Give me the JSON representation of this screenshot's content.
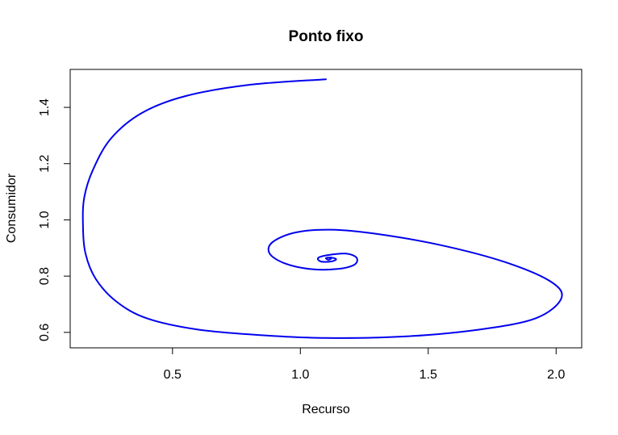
{
  "chart_data": {
    "type": "line",
    "title": "Ponto fixo",
    "xlabel": "Recurso",
    "ylabel": "Consumidor",
    "xlim": [
      0.1,
      2.1
    ],
    "ylim": [
      0.545,
      1.535
    ],
    "xticks": [
      0.5,
      1.0,
      1.5,
      2.0
    ],
    "xtick_labels": [
      "0.5",
      "1.0",
      "1.5",
      "2.0"
    ],
    "yticks": [
      0.6,
      0.8,
      1.0,
      1.2,
      1.4
    ],
    "ytick_labels": [
      "0.6",
      "0.8",
      "1.0",
      "1.2",
      "1.4"
    ],
    "grid": false,
    "legend": "none",
    "series": [
      {
        "color": "#0000ee",
        "x": [
          1.1,
          0.8,
          0.55,
          0.38,
          0.26,
          0.19,
          0.155,
          0.15,
          0.16,
          0.2,
          0.28,
          0.4,
          0.6,
          0.85,
          1.1,
          1.4,
          1.7,
          1.92,
          2.02,
          1.98,
          1.8,
          1.55,
          1.3,
          1.12,
          0.98,
          0.89,
          0.88,
          0.94,
          1.04,
          1.14,
          1.21,
          1.22,
          1.18,
          1.11,
          1.07,
          1.08,
          1.12,
          1.14,
          1.12,
          1.1,
          1.11,
          1.12
        ],
        "y": [
          1.5,
          1.48,
          1.44,
          1.38,
          1.29,
          1.18,
          1.08,
          0.98,
          0.88,
          0.79,
          0.71,
          0.65,
          0.61,
          0.59,
          0.58,
          0.585,
          0.61,
          0.65,
          0.72,
          0.78,
          0.85,
          0.91,
          0.95,
          0.965,
          0.955,
          0.92,
          0.88,
          0.845,
          0.825,
          0.825,
          0.84,
          0.865,
          0.88,
          0.875,
          0.865,
          0.852,
          0.852,
          0.86,
          0.866,
          0.864,
          0.858,
          0.862
        ]
      }
    ]
  }
}
